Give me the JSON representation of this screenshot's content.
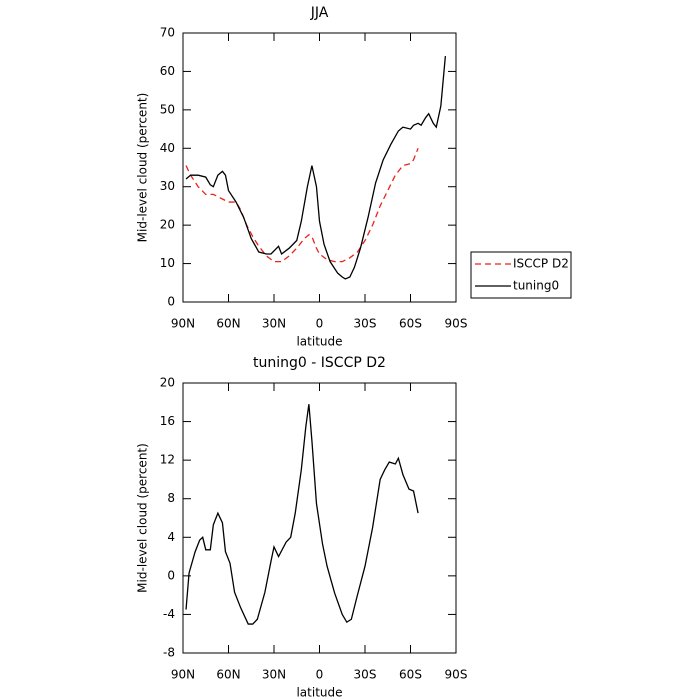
{
  "chart_data": [
    {
      "type": "line",
      "title": "JJA",
      "xlabel": "latitude",
      "ylabel": "Mid-level cloud (percent)",
      "xlim": [
        90,
        -90
      ],
      "ylim": [
        0,
        70
      ],
      "xticks": [
        {
          "value": 90,
          "label": "90N"
        },
        {
          "value": 60,
          "label": "60N"
        },
        {
          "value": 30,
          "label": "30N"
        },
        0,
        {
          "value": -30,
          "label": "30S"
        },
        {
          "value": -60,
          "label": "60S"
        },
        {
          "value": -90,
          "label": "90S"
        }
      ],
      "yticks": [
        0,
        10,
        20,
        30,
        40,
        50,
        60,
        70
      ],
      "legend": "right",
      "series": [
        {
          "name": "ISCCP D2",
          "color": "#e8241c",
          "dash": true,
          "x": [
            88,
            85,
            80,
            75,
            70,
            65,
            60,
            55,
            52,
            48,
            44,
            40,
            35,
            30,
            25,
            20,
            15,
            10,
            7,
            5,
            2,
            0,
            -5,
            -10,
            -15,
            -20,
            -25,
            -30,
            -35,
            -40,
            -45,
            -50,
            -55,
            -60,
            -62,
            -65
          ],
          "values": [
            35.5,
            33,
            30,
            28,
            28,
            27,
            26,
            26,
            24,
            20,
            17,
            14.5,
            12,
            10.5,
            10.5,
            12,
            14,
            16.5,
            17.5,
            17,
            14,
            12.5,
            11,
            10.5,
            10.5,
            11.5,
            13,
            16,
            20,
            25,
            29,
            33,
            35.5,
            36,
            37,
            40
          ]
        },
        {
          "name": "tuning0",
          "color": "#000000",
          "dash": false,
          "x": [
            88,
            85,
            80,
            75,
            72,
            70,
            67,
            64,
            62,
            60,
            55,
            50,
            45,
            40,
            35,
            32,
            27,
            25,
            20,
            15,
            12,
            8,
            5,
            2,
            0,
            -3,
            -7,
            -12,
            -15,
            -17,
            -20,
            -23,
            -27,
            -32,
            -37,
            -42,
            -47,
            -52,
            -55,
            -60,
            -62,
            -65,
            -67,
            -70,
            -72,
            -75,
            -77,
            -80,
            -83
          ],
          "values": [
            32,
            33,
            33,
            32.5,
            30.5,
            30,
            33,
            34,
            33,
            29,
            26,
            22,
            16.5,
            13,
            12.5,
            12.5,
            14.5,
            12.5,
            14,
            16,
            21,
            30,
            35.5,
            30,
            21,
            15,
            10.5,
            7.5,
            6.5,
            6,
            6.5,
            9,
            14,
            22,
            31,
            37,
            41,
            44.5,
            45.5,
            45,
            46,
            46.5,
            46,
            48,
            49,
            46.5,
            45.5,
            51,
            64
          ]
        }
      ]
    },
    {
      "type": "line",
      "title": "tuning0 - ISCCP D2",
      "xlabel": "latitude",
      "ylabel": "Mid-level cloud (percent)",
      "xlim": [
        90,
        -90
      ],
      "ylim": [
        -8,
        20
      ],
      "xticks": [
        {
          "value": 90,
          "label": "90N"
        },
        {
          "value": 60,
          "label": "60N"
        },
        {
          "value": 30,
          "label": "30N"
        },
        0,
        {
          "value": -30,
          "label": "30S"
        },
        {
          "value": -60,
          "label": "60S"
        },
        {
          "value": -90,
          "label": "90S"
        }
      ],
      "yticks": [
        -8,
        -4,
        0,
        4,
        8,
        12,
        16,
        20
      ],
      "series": [
        {
          "color": "#000000",
          "dash": false,
          "x": [
            88,
            86,
            82,
            79,
            77,
            75,
            72,
            70,
            67,
            64,
            62,
            59,
            56,
            52,
            47,
            44,
            41,
            36,
            32,
            30,
            27,
            22,
            19,
            16,
            12,
            9,
            7,
            5,
            2,
            -2,
            -5,
            -10,
            -15,
            -18,
            -21,
            -25,
            -30,
            -35,
            -40,
            -43,
            -46,
            -48,
            -50,
            -52,
            -55,
            -59,
            -62,
            -65
          ],
          "values": [
            -3.5,
            0.3,
            2.5,
            3.7,
            4,
            2.7,
            2.7,
            5.3,
            6.5,
            5.5,
            2.5,
            1.3,
            -1.7,
            -3.3,
            -5,
            -5,
            -4.5,
            -1.7,
            1.5,
            3,
            2,
            3.5,
            4,
            6.5,
            11,
            15.5,
            17.8,
            14,
            7.5,
            3.3,
            1,
            -1.8,
            -4,
            -4.8,
            -4.5,
            -2,
            1,
            5,
            10,
            11,
            11.8,
            11.7,
            11.6,
            12.2,
            10.5,
            9,
            8.8,
            6.5
          ]
        }
      ]
    }
  ]
}
